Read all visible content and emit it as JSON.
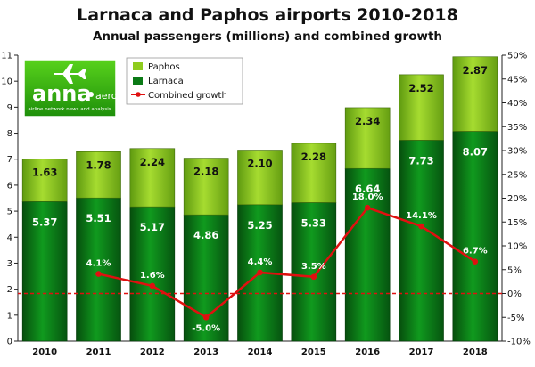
{
  "chart_data": {
    "type": "bar",
    "title": "Larnaca and Paphos airports 2010-2018",
    "subtitle": "Annual passengers (millions) and combined growth",
    "categories": [
      "2010",
      "2011",
      "2012",
      "2013",
      "2014",
      "2015",
      "2016",
      "2017",
      "2018"
    ],
    "stacked": true,
    "series": [
      {
        "name": "Larnaca",
        "values": [
          5.37,
          5.51,
          5.17,
          4.86,
          5.25,
          5.33,
          6.64,
          7.73,
          8.07
        ],
        "color": "#0b7a16",
        "labels": [
          "5.37",
          "5.51",
          "5.17",
          "4.86",
          "5.25",
          "5.33",
          "6.64",
          "7.73",
          "8.07"
        ]
      },
      {
        "name": "Paphos",
        "values": [
          1.63,
          1.78,
          2.24,
          2.18,
          2.1,
          2.28,
          2.34,
          2.52,
          2.87
        ],
        "color": "#8fcc1e",
        "labels": [
          "1.63",
          "1.78",
          "2.24",
          "2.18",
          "2.10",
          "2.28",
          "2.34",
          "2.52",
          "2.87"
        ]
      }
    ],
    "line_series": {
      "name": "Combined growth",
      "color": "#e01010",
      "x": [
        "2011",
        "2012",
        "2013",
        "2014",
        "2015",
        "2016",
        "2017",
        "2018"
      ],
      "values": [
        4.1,
        1.6,
        -5.0,
        4.4,
        3.5,
        18.0,
        14.1,
        6.7
      ],
      "labels": [
        "4.1%",
        "1.6%",
        "-5.0%",
        "4.4%",
        "3.5%",
        "18.0%",
        "14.1%",
        "6.7%"
      ]
    },
    "y_left": {
      "min": 0,
      "max": 11,
      "ticks": [
        "0",
        "1",
        "2",
        "3",
        "4",
        "5",
        "6",
        "7",
        "8",
        "9",
        "10",
        "11"
      ]
    },
    "y_right": {
      "min": -10,
      "max": 50,
      "ticks": [
        "-10%",
        "-5%",
        "0%",
        "5%",
        "10%",
        "15%",
        "20%",
        "25%",
        "30%",
        "35%",
        "40%",
        "45%",
        "50%"
      ],
      "reference_line": 0
    },
    "legend": {
      "position": "top-left",
      "entries": [
        "Paphos",
        "Larnaca",
        "Combined growth"
      ]
    },
    "grid": false
  },
  "logo": {
    "brand": "anna",
    "brand_suffix": "aero",
    "tagline": "airline network news and analysis"
  }
}
